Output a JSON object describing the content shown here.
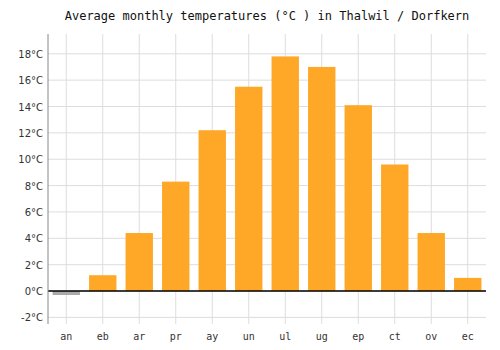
{
  "chart_data": {
    "type": "bar",
    "title": "Average monthly temperatures (°C ) in Thalwil / Dorfkern",
    "categories": [
      "an",
      "eb",
      "ar",
      "pr",
      "ay",
      "un",
      "ul",
      "ug",
      "ep",
      "ct",
      "ov",
      "ec"
    ],
    "values": [
      -0.3,
      1.2,
      4.4,
      8.3,
      12.2,
      15.5,
      17.8,
      17.0,
      14.1,
      9.6,
      4.4,
      1.0
    ],
    "colors": [
      "#AAAAAA",
      "#FFA726",
      "#FFA726",
      "#FFA726",
      "#FFA726",
      "#FFA726",
      "#FFA726",
      "#FFA726",
      "#FFA726",
      "#FFA726",
      "#FFA726",
      "#FFA726"
    ],
    "ylim": [
      -2.5,
      19.5
    ],
    "yticks": [
      {
        "value": -2,
        "label": "-2°C"
      },
      {
        "value": 0,
        "label": "0°C"
      },
      {
        "value": 2,
        "label": "2°C"
      },
      {
        "value": 4,
        "label": "4°C"
      },
      {
        "value": 6,
        "label": "6°C"
      },
      {
        "value": 8,
        "label": "8°C"
      },
      {
        "value": 10,
        "label": "10°C"
      },
      {
        "value": 12,
        "label": "12°C"
      },
      {
        "value": 14,
        "label": "14°C"
      },
      {
        "value": 16,
        "label": "16°C"
      },
      {
        "value": 18,
        "label": "18°C"
      }
    ],
    "grid": true
  }
}
